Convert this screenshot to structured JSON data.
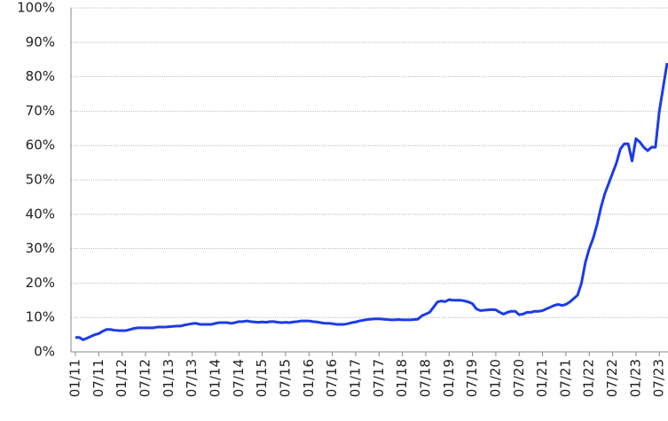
{
  "chart_data": {
    "type": "line",
    "categories": [
      "01/11",
      null,
      null,
      null,
      null,
      null,
      "07/11",
      null,
      null,
      null,
      null,
      null,
      "01/12",
      null,
      null,
      null,
      null,
      null,
      "07/12",
      null,
      null,
      null,
      null,
      null,
      "01/13",
      null,
      null,
      null,
      null,
      null,
      "07/13",
      null,
      null,
      null,
      null,
      null,
      "01/14",
      null,
      null,
      null,
      null,
      null,
      "07/14",
      null,
      null,
      null,
      null,
      null,
      "01/15",
      null,
      null,
      null,
      null,
      null,
      "07/15",
      null,
      null,
      null,
      null,
      null,
      "01/16",
      null,
      null,
      null,
      null,
      null,
      "07/16",
      null,
      null,
      null,
      null,
      null,
      "01/17",
      null,
      null,
      null,
      null,
      null,
      "07/17",
      null,
      null,
      null,
      null,
      null,
      "01/18",
      null,
      null,
      null,
      null,
      null,
      "07/18",
      null,
      null,
      null,
      null,
      null,
      "01/19",
      null,
      null,
      null,
      null,
      null,
      "07/19",
      null,
      null,
      null,
      null,
      null,
      "01/20",
      null,
      null,
      null,
      null,
      null,
      "07/20",
      null,
      null,
      null,
      null,
      null,
      "01/21",
      null,
      null,
      null,
      null,
      null,
      "07/21",
      null,
      null,
      null,
      null,
      null,
      "01/22",
      null,
      null,
      null,
      null,
      null,
      "07/22",
      null,
      null,
      null,
      null,
      null,
      "01/23",
      null,
      null,
      null,
      null,
      null,
      "07/23",
      null,
      null
    ],
    "series": [
      {
        "color": "#1b3ce6",
        "values": [
          4.2,
          4.2,
          3.5,
          4,
          4.5,
          5,
          5.3,
          6,
          6.5,
          6.5,
          6.3,
          6.2,
          6.2,
          6.2,
          6.5,
          6.8,
          7,
          7,
          7,
          7,
          7,
          7.2,
          7.2,
          7.2,
          7.3,
          7.4,
          7.5,
          7.5,
          7.8,
          8,
          8.2,
          8.3,
          8,
          8,
          8,
          8,
          8.3,
          8.5,
          8.5,
          8.5,
          8.3,
          8.5,
          8.8,
          8.8,
          9,
          8.8,
          8.7,
          8.6,
          8.7,
          8.6,
          8.8,
          8.8,
          8.6,
          8.5,
          8.6,
          8.5,
          8.7,
          8.8,
          9,
          9,
          9,
          8.8,
          8.7,
          8.5,
          8.3,
          8.3,
          8.2,
          8,
          8,
          8,
          8.2,
          8.5,
          8.7,
          9,
          9.2,
          9.4,
          9.5,
          9.6,
          9.6,
          9.5,
          9.4,
          9.3,
          9.3,
          9.4,
          9.3,
          9.3,
          9.3,
          9.4,
          9.5,
          10.5,
          11,
          11.5,
          13,
          14.5,
          14.8,
          14.6,
          15.2,
          15,
          15,
          15,
          14.8,
          14.5,
          14,
          12.5,
          12,
          12.1,
          12.2,
          12.3,
          12.2,
          11.5,
          11,
          11.5,
          11.8,
          11.8,
          10.8,
          11,
          11.5,
          11.5,
          11.8,
          11.8,
          12,
          12.5,
          13,
          13.5,
          13.8,
          13.5,
          13.8,
          14.5,
          15.5,
          16.5,
          20,
          26,
          30,
          33,
          37,
          42,
          46,
          49,
          52,
          55,
          59,
          60.5,
          60.5,
          55.5,
          62,
          61,
          59.5,
          58.5,
          59.5,
          59.5,
          70,
          77,
          84
        ]
      }
    ],
    "ylim": [
      0,
      100
    ],
    "yticks": [
      {
        "value": 0,
        "label": "0%"
      },
      {
        "value": 10,
        "label": "10%"
      },
      {
        "value": 20,
        "label": "20%"
      },
      {
        "value": 30,
        "label": "30%"
      },
      {
        "value": 40,
        "label": "40%"
      },
      {
        "value": 50,
        "label": "50%"
      },
      {
        "value": 60,
        "label": "60%"
      },
      {
        "value": 70,
        "label": "70%"
      },
      {
        "value": 80,
        "label": "80%"
      },
      {
        "value": 90,
        "label": "90%"
      },
      {
        "value": 100,
        "label": "100%"
      }
    ],
    "grid": true
  }
}
